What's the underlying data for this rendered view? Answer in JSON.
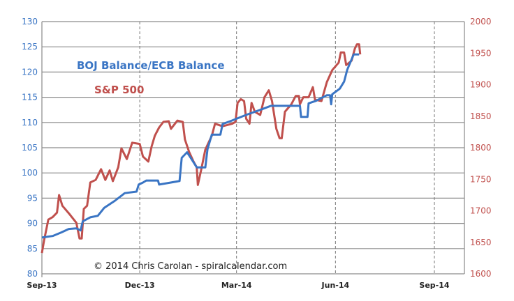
{
  "chart_data": {
    "type": "line",
    "title": "",
    "annotations": {
      "series1_label": "BOJ Balance/ECB Balance",
      "series2_label": "S&P 500",
      "copyright": "© 2014  Chris Carolan - spiralcalendar.com"
    },
    "x_axis": {
      "type": "date",
      "range": [
        "2013-09-01",
        "2014-10-31"
      ],
      "ticks": [
        "2013-09-01",
        "2013-12-01",
        "2014-03-01",
        "2014-06-01",
        "2014-09-01"
      ],
      "tick_labels": [
        "Sep-13",
        "Dec-13",
        "Mar-14",
        "Jun-14",
        "Sep-14"
      ],
      "grid": "dashed vertical"
    },
    "y_left": {
      "range": [
        80,
        130
      ],
      "ticks": [
        80,
        85,
        90,
        95,
        100,
        105,
        110,
        115,
        120,
        125,
        130
      ],
      "color": "#3a75c4",
      "grid": "solid horizontal"
    },
    "y_right": {
      "range": [
        1600,
        2000
      ],
      "ticks": [
        1600,
        1650,
        1700,
        1750,
        1800,
        1850,
        1900,
        1950,
        2000
      ],
      "color": "#c0504d"
    },
    "series": [
      {
        "name": "BOJ Balance/ECB Balance",
        "axis": "left",
        "color": "#3a75c4",
        "points": [
          [
            "2013-09-01",
            87.2
          ],
          [
            "2013-09-11",
            87.5
          ],
          [
            "2013-09-19",
            88.2
          ],
          [
            "2013-09-26",
            88.9
          ],
          [
            "2013-10-03",
            89.0
          ],
          [
            "2013-10-07",
            88.6
          ],
          [
            "2013-10-09",
            90.4
          ],
          [
            "2013-10-16",
            91.2
          ],
          [
            "2013-10-23",
            91.5
          ],
          [
            "2013-10-29",
            93.1
          ],
          [
            "2013-11-08",
            94.5
          ],
          [
            "2013-11-17",
            96.0
          ],
          [
            "2013-11-28",
            96.3
          ],
          [
            "2013-11-30",
            97.7
          ],
          [
            "2013-12-04",
            98.1
          ],
          [
            "2013-12-07",
            98.5
          ],
          [
            "2013-12-18",
            98.5
          ],
          [
            "2013-12-19",
            97.7
          ],
          [
            "2014-01-07",
            98.4
          ],
          [
            "2014-01-09",
            103.0
          ],
          [
            "2014-01-14",
            104.1
          ],
          [
            "2014-01-18",
            102.8
          ],
          [
            "2014-01-23",
            101.1
          ],
          [
            "2014-01-31",
            101.1
          ],
          [
            "2014-02-02",
            104.7
          ],
          [
            "2014-02-06",
            107.6
          ],
          [
            "2014-02-14",
            107.6
          ],
          [
            "2014-02-16",
            109.7
          ],
          [
            "2014-02-25",
            110.4
          ],
          [
            "2014-03-10",
            111.5
          ],
          [
            "2014-03-23",
            112.5
          ],
          [
            "2014-04-02",
            113.3
          ],
          [
            "2014-04-29",
            113.3
          ],
          [
            "2014-04-30",
            111.1
          ],
          [
            "2014-05-06",
            111.1
          ],
          [
            "2014-05-07",
            113.8
          ],
          [
            "2014-05-14",
            114.3
          ],
          [
            "2014-05-24",
            115.4
          ],
          [
            "2014-05-27",
            115.4
          ],
          [
            "2014-05-28",
            113.6
          ],
          [
            "2014-05-29",
            115.6
          ],
          [
            "2014-06-05",
            116.7
          ],
          [
            "2014-06-09",
            118.1
          ],
          [
            "2014-06-12",
            120.5
          ],
          [
            "2014-06-18",
            123.5
          ],
          [
            "2014-06-23",
            123.5
          ]
        ]
      },
      {
        "name": "S&P 500",
        "axis": "right",
        "color": "#c0504d",
        "points": [
          [
            "2013-09-01",
            1633
          ],
          [
            "2013-09-03",
            1653
          ],
          [
            "2013-09-07",
            1686
          ],
          [
            "2013-09-11",
            1690
          ],
          [
            "2013-09-15",
            1697
          ],
          [
            "2013-09-17",
            1725
          ],
          [
            "2013-09-20",
            1708
          ],
          [
            "2013-09-27",
            1694
          ],
          [
            "2013-10-03",
            1681
          ],
          [
            "2013-10-06",
            1656
          ],
          [
            "2013-10-08",
            1656
          ],
          [
            "2013-10-10",
            1703
          ],
          [
            "2013-10-13",
            1708
          ],
          [
            "2013-10-16",
            1745
          ],
          [
            "2013-10-21",
            1749
          ],
          [
            "2013-10-26",
            1766
          ],
          [
            "2013-10-30",
            1749
          ],
          [
            "2013-11-03",
            1764
          ],
          [
            "2013-11-06",
            1747
          ],
          [
            "2013-11-11",
            1769
          ],
          [
            "2013-11-14",
            1799
          ],
          [
            "2013-11-19",
            1782
          ],
          [
            "2013-11-24",
            1808
          ],
          [
            "2013-12-01",
            1806
          ],
          [
            "2013-12-04",
            1786
          ],
          [
            "2013-12-09",
            1778
          ],
          [
            "2013-12-12",
            1802
          ],
          [
            "2013-12-15",
            1819
          ],
          [
            "2013-12-19",
            1832
          ],
          [
            "2013-12-23",
            1841
          ],
          [
            "2013-12-28",
            1842
          ],
          [
            "2013-12-30",
            1830
          ],
          [
            "2014-01-05",
            1843
          ],
          [
            "2014-01-10",
            1841
          ],
          [
            "2014-01-12",
            1813
          ],
          [
            "2014-01-16",
            1793
          ],
          [
            "2014-01-20",
            1778
          ],
          [
            "2014-01-23",
            1769
          ],
          [
            "2014-01-24",
            1741
          ],
          [
            "2014-01-27",
            1764
          ],
          [
            "2014-01-31",
            1797
          ],
          [
            "2014-02-06",
            1819
          ],
          [
            "2014-02-09",
            1838
          ],
          [
            "2014-02-16",
            1834
          ],
          [
            "2014-02-25",
            1838
          ],
          [
            "2014-02-28",
            1841
          ],
          [
            "2014-03-02",
            1871
          ],
          [
            "2014-03-05",
            1877
          ],
          [
            "2014-03-08",
            1874
          ],
          [
            "2014-03-10",
            1846
          ],
          [
            "2014-03-13",
            1838
          ],
          [
            "2014-03-15",
            1871
          ],
          [
            "2014-03-18",
            1857
          ],
          [
            "2014-03-23",
            1852
          ],
          [
            "2014-03-27",
            1880
          ],
          [
            "2014-03-31",
            1891
          ],
          [
            "2014-04-03",
            1874
          ],
          [
            "2014-04-07",
            1830
          ],
          [
            "2014-04-10",
            1815
          ],
          [
            "2014-04-12",
            1815
          ],
          [
            "2014-04-15",
            1857
          ],
          [
            "2014-04-21",
            1869
          ],
          [
            "2014-04-25",
            1882
          ],
          [
            "2014-04-28",
            1882
          ],
          [
            "2014-04-29",
            1869
          ],
          [
            "2014-05-02",
            1880
          ],
          [
            "2014-05-07",
            1880
          ],
          [
            "2014-05-11",
            1896
          ],
          [
            "2014-05-13",
            1876
          ],
          [
            "2014-05-19",
            1874
          ],
          [
            "2014-05-24",
            1904
          ],
          [
            "2014-05-29",
            1923
          ],
          [
            "2014-06-04",
            1935
          ],
          [
            "2014-06-06",
            1951
          ],
          [
            "2014-06-09",
            1951
          ],
          [
            "2014-06-11",
            1931
          ],
          [
            "2014-06-16",
            1938
          ],
          [
            "2014-06-19",
            1957
          ],
          [
            "2014-06-21",
            1964
          ],
          [
            "2014-06-23",
            1964
          ],
          [
            "2014-06-24",
            1948
          ]
        ]
      }
    ]
  }
}
